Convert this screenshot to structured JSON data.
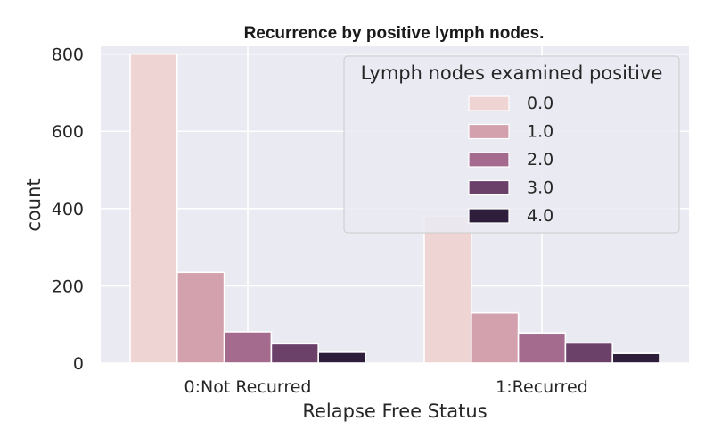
{
  "chart_data": {
    "type": "bar",
    "title": "Recurrence by positive lymph nodes.",
    "xlabel": "Relapse Free Status",
    "ylabel": "count",
    "categories": [
      "0:Not Recurred",
      "1:Recurred"
    ],
    "ylim": [
      0,
      820
    ],
    "yticks": [
      0,
      200,
      400,
      600,
      800
    ],
    "grid": true,
    "legend": {
      "title": "Lymph nodes examined positive",
      "placement": "top-right"
    },
    "series": [
      {
        "name": "0.0",
        "color": "#eed4d3",
        "values": [
          800,
          381
        ]
      },
      {
        "name": "1.0",
        "color": "#d3a0ad",
        "values": [
          235,
          130
        ]
      },
      {
        "name": "2.0",
        "color": "#a46b8f",
        "values": [
          81,
          78
        ]
      },
      {
        "name": "3.0",
        "color": "#6b416a",
        "values": [
          50,
          52
        ]
      },
      {
        "name": "4.0",
        "color": "#2e1e3b",
        "values": [
          28,
          25
        ]
      }
    ]
  }
}
